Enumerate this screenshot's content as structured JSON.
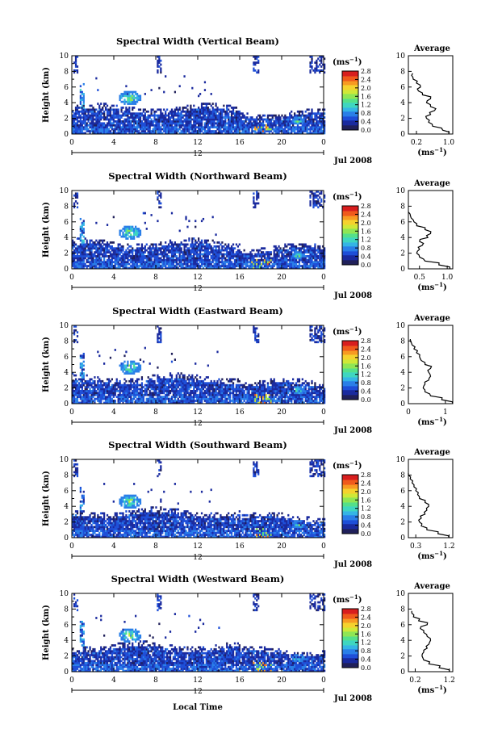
{
  "figure": {
    "date_label": "Jul 2008",
    "day_label": "12",
    "xlabel": "Local Time",
    "ylabel": "Height (km)",
    "x_ticks": [
      "0",
      "4",
      "8",
      "12",
      "16",
      "20",
      "0"
    ],
    "y_ticks": [
      "0",
      "2",
      "4",
      "6",
      "8",
      "10"
    ],
    "colorbar_unit_base": "(ms",
    "colorbar_unit_exp": "−1",
    "colorbar_unit_close": ")",
    "colorbar_ticks": [
      "0.0",
      "0.4",
      "0.8",
      "1.2",
      "1.6",
      "2.0",
      "2.4",
      "2.8"
    ],
    "colorbar_colors": [
      "#20205a",
      "#1a2a9e",
      "#1e4fd8",
      "#2a7fe8",
      "#35b5e5",
      "#3fd6c0",
      "#54e08a",
      "#8fe655",
      "#cfe838",
      "#f5d22e",
      "#f79a22",
      "#ef5a1c",
      "#d81e1e"
    ],
    "average_title": "Average",
    "average_ylabel_ticks": [
      "0",
      "2",
      "4",
      "6",
      "8",
      "10"
    ]
  },
  "chart_data": [
    {
      "type": "heatmap",
      "title": "Spectral Width (Vertical Beam)",
      "x_range": [
        0,
        24
      ],
      "y_range": [
        0,
        10
      ],
      "colorbar_range": [
        0.0,
        2.8
      ],
      "profile": {
        "title": "Average",
        "x_ticks": [
          "0.2",
          "1.0"
        ],
        "x_range": [
          0.0,
          1.1
        ],
        "heights": [
          0,
          0.5,
          1,
          1.5,
          2,
          2.5,
          3,
          3.5,
          4,
          4.5,
          5,
          5.5,
          6,
          6.5,
          7,
          7.5
        ],
        "values": [
          1.0,
          0.85,
          0.6,
          0.5,
          0.45,
          0.55,
          0.65,
          0.55,
          0.45,
          0.55,
          0.35,
          0.25,
          0.3,
          0.2,
          0.12,
          0.08
        ]
      }
    },
    {
      "type": "heatmap",
      "title": "Spectral Width (Northward Beam)",
      "x_range": [
        0,
        24
      ],
      "y_range": [
        0,
        10
      ],
      "colorbar_range": [
        0.0,
        2.8
      ],
      "profile": {
        "title": "Average",
        "x_ticks": [
          "0.5",
          "1.0"
        ],
        "x_range": [
          0.3,
          1.1
        ],
        "heights": [
          0,
          0.5,
          1,
          1.5,
          2,
          2.5,
          3,
          3.5,
          4,
          4.5,
          5,
          5.5,
          6,
          6.5,
          7
        ],
        "values": [
          1.05,
          0.85,
          0.6,
          0.5,
          0.45,
          0.5,
          0.55,
          0.5,
          0.65,
          0.7,
          0.6,
          0.45,
          0.4,
          0.35,
          0.33
        ]
      }
    },
    {
      "type": "heatmap",
      "title": "Spectral Width (Eastward Beam)",
      "x_range": [
        0,
        24
      ],
      "y_range": [
        0,
        10
      ],
      "colorbar_range": [
        0.0,
        2.8
      ],
      "profile": {
        "title": "Average",
        "x_ticks": [
          "0",
          "1"
        ],
        "x_range": [
          0.0,
          1.2
        ],
        "heights": [
          0,
          0.5,
          1,
          1.5,
          2,
          2.5,
          3,
          3.5,
          4,
          4.5,
          5,
          5.5,
          6,
          6.5,
          7,
          7.5,
          8
        ],
        "values": [
          1.2,
          0.9,
          0.6,
          0.45,
          0.4,
          0.45,
          0.55,
          0.6,
          0.55,
          0.6,
          0.45,
          0.35,
          0.3,
          0.22,
          0.15,
          0.1,
          0.05
        ]
      }
    },
    {
      "type": "heatmap",
      "title": "Spectral Width (Southward Beam)",
      "x_range": [
        0,
        24
      ],
      "y_range": [
        0,
        10
      ],
      "colorbar_range": [
        0.0,
        2.8
      ],
      "profile": {
        "title": "Average",
        "x_ticks": [
          "0.3",
          "1.2"
        ],
        "x_range": [
          0.1,
          1.3
        ],
        "heights": [
          0,
          0.5,
          1,
          1.5,
          2,
          2.5,
          3,
          3.5,
          4,
          4.5,
          5,
          5.5,
          6,
          6.5,
          7,
          7.5,
          8
        ],
        "values": [
          1.2,
          0.9,
          0.6,
          0.45,
          0.4,
          0.45,
          0.55,
          0.6,
          0.65,
          0.55,
          0.4,
          0.35,
          0.3,
          0.25,
          0.2,
          0.15,
          0.1
        ]
      }
    },
    {
      "type": "heatmap",
      "title": "Spectral Width (Westward Beam)",
      "x_range": [
        0,
        24
      ],
      "y_range": [
        0,
        10
      ],
      "colorbar_range": [
        0.0,
        2.8
      ],
      "profile": {
        "title": "Average",
        "x_ticks": [
          "0.2",
          "1.2"
        ],
        "x_range": [
          0.0,
          1.3
        ],
        "heights": [
          0,
          0.5,
          1,
          1.5,
          2,
          2.5,
          3,
          3.5,
          4,
          4.5,
          5,
          5.5,
          6,
          6.5,
          7,
          7.5
        ],
        "values": [
          1.2,
          0.9,
          0.6,
          0.45,
          0.4,
          0.45,
          0.55,
          0.6,
          0.65,
          0.55,
          0.45,
          0.35,
          0.55,
          0.3,
          0.15,
          0.1
        ]
      }
    }
  ]
}
